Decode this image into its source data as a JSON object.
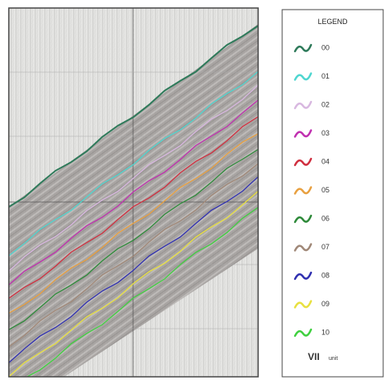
{
  "legend": {
    "title": "LEGEND",
    "items": [
      {
        "label": "00",
        "color": "#2e7a5a"
      },
      {
        "label": "01",
        "color": "#4fd6d0"
      },
      {
        "label": "02",
        "color": "#d8b8e0"
      },
      {
        "label": "03",
        "color": "#c030b0"
      },
      {
        "label": "04",
        "color": "#d03040"
      },
      {
        "label": "05",
        "color": "#e8a040"
      },
      {
        "label": "06",
        "color": "#2e8a3a"
      },
      {
        "label": "07",
        "color": "#a08878"
      },
      {
        "label": "08",
        "color": "#3030b0"
      },
      {
        "label": "09",
        "color": "#e8e040"
      },
      {
        "label": "10",
        "color": "#40d040"
      }
    ],
    "unit": {
      "code": "VII",
      "label": "unit"
    }
  }
}
